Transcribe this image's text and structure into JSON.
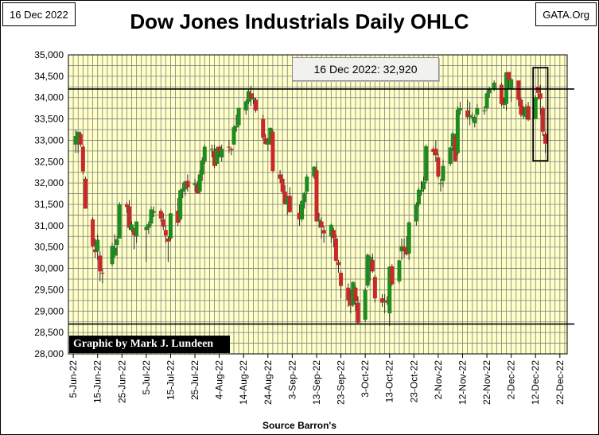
{
  "header": {
    "date_label": "16 Dec 2022",
    "brand_label": "GATA.Org"
  },
  "annotations": {
    "callout": "16 Dec 2022: 32,920",
    "credit": "Graphic by Mark J. Lundeen"
  },
  "colors": {
    "plot_bg": "#ffffc8",
    "grid": "#7f7f7f",
    "up": "#1e8b1e",
    "down": "#c82828",
    "reference_line": "#000000"
  },
  "chart_data": {
    "type": "ohlc",
    "title": "Dow Jones Industrials Daily OHLC",
    "xlabel": "Source Barron's",
    "ylabel": "",
    "ylim": [
      28000,
      35000
    ],
    "yticks": [
      28000,
      28500,
      29000,
      29500,
      30000,
      30500,
      31000,
      31500,
      32000,
      32500,
      33000,
      33500,
      34000,
      34500,
      35000
    ],
    "ytick_labels": [
      "28,000",
      "28,500",
      "29,000",
      "29,500",
      "30,000",
      "30,500",
      "31,000",
      "31,500",
      "32,000",
      "32,500",
      "33,000",
      "33,500",
      "34,000",
      "34,500",
      "35,000"
    ],
    "xlim": [
      "2022-06-03",
      "2022-12-25"
    ],
    "xticks": [
      "2022-06-05",
      "2022-06-15",
      "2022-06-25",
      "2022-07-05",
      "2022-07-15",
      "2022-07-25",
      "2022-08-04",
      "2022-08-14",
      "2022-08-24",
      "2022-09-03",
      "2022-09-13",
      "2022-09-23",
      "2022-10-03",
      "2022-10-13",
      "2022-10-23",
      "2022-11-02",
      "2022-11-12",
      "2022-11-22",
      "2022-12-02",
      "2022-12-12",
      "2022-12-22"
    ],
    "xtick_labels": [
      "5-Jun-22",
      "15-Jun-22",
      "25-Jun-22",
      "5-Jul-22",
      "15-Jul-22",
      "25-Jul-22",
      "4-Aug-22",
      "14-Aug-22",
      "24-Aug-22",
      "3-Sep-22",
      "13-Sep-22",
      "23-Sep-22",
      "3-Oct-22",
      "13-Oct-22",
      "23-Oct-22",
      "2-Nov-22",
      "12-Nov-22",
      "22-Nov-22",
      "2-Dec-22",
      "12-Dec-22",
      "22-Dec-22"
    ],
    "grid": true,
    "reference_lines": [
      34200,
      28700
    ],
    "highlight_box": {
      "x": [
        "2022-12-11",
        "2022-12-17"
      ],
      "y": [
        32520,
        34700
      ]
    },
    "bars": [
      {
        "d": "2022-06-06",
        "o": 32900,
        "h": 33250,
        "l": 32700,
        "c": 33100
      },
      {
        "d": "2022-06-07",
        "o": 32950,
        "h": 33200,
        "l": 32700,
        "c": 33200
      },
      {
        "d": "2022-06-08",
        "o": 33150,
        "h": 33200,
        "l": 32850,
        "c": 32900
      },
      {
        "d": "2022-06-09",
        "o": 32850,
        "h": 32900,
        "l": 32200,
        "c": 32270
      },
      {
        "d": "2022-06-10",
        "o": 32100,
        "h": 32150,
        "l": 31400,
        "c": 31400
      },
      {
        "d": "2022-06-13",
        "o": 31150,
        "h": 31200,
        "l": 30500,
        "c": 30520
      },
      {
        "d": "2022-06-14",
        "o": 30450,
        "h": 30700,
        "l": 30250,
        "c": 30380
      },
      {
        "d": "2022-06-15",
        "o": 30400,
        "h": 30800,
        "l": 30200,
        "c": 30670
      },
      {
        "d": "2022-06-16",
        "o": 30300,
        "h": 30400,
        "l": 29700,
        "c": 29930
      },
      {
        "d": "2022-06-17",
        "o": 29900,
        "h": 30000,
        "l": 29650,
        "c": 29890
      },
      {
        "d": "2022-06-21",
        "o": 30100,
        "h": 30600,
        "l": 30050,
        "c": 30530
      },
      {
        "d": "2022-06-22",
        "o": 30300,
        "h": 30800,
        "l": 30250,
        "c": 30480
      },
      {
        "d": "2022-06-23",
        "o": 30550,
        "h": 30750,
        "l": 30300,
        "c": 30680
      },
      {
        "d": "2022-06-24",
        "o": 30700,
        "h": 31550,
        "l": 30700,
        "c": 31500
      },
      {
        "d": "2022-06-27",
        "o": 31500,
        "h": 31550,
        "l": 31300,
        "c": 31440
      },
      {
        "d": "2022-06-28",
        "o": 31450,
        "h": 31600,
        "l": 30900,
        "c": 30950
      },
      {
        "d": "2022-06-29",
        "o": 30900,
        "h": 31100,
        "l": 30850,
        "c": 31030
      },
      {
        "d": "2022-06-30",
        "o": 30900,
        "h": 30950,
        "l": 30450,
        "c": 30780
      },
      {
        "d": "2022-07-01",
        "o": 30750,
        "h": 31100,
        "l": 30600,
        "c": 31100
      },
      {
        "d": "2022-07-05",
        "o": 30900,
        "h": 31000,
        "l": 30150,
        "c": 30970
      },
      {
        "d": "2022-07-06",
        "o": 30950,
        "h": 31100,
        "l": 30800,
        "c": 31040
      },
      {
        "d": "2022-07-07",
        "o": 31050,
        "h": 31450,
        "l": 31000,
        "c": 31380
      },
      {
        "d": "2022-07-08",
        "o": 31300,
        "h": 31450,
        "l": 31200,
        "c": 31340
      },
      {
        "d": "2022-07-11",
        "o": 31350,
        "h": 31400,
        "l": 31100,
        "c": 31170
      },
      {
        "d": "2022-07-12",
        "o": 31150,
        "h": 31300,
        "l": 30900,
        "c": 30980
      },
      {
        "d": "2022-07-13",
        "o": 30900,
        "h": 31000,
        "l": 30600,
        "c": 30770
      },
      {
        "d": "2022-07-14",
        "o": 30700,
        "h": 30750,
        "l": 30150,
        "c": 30630
      },
      {
        "d": "2022-07-15",
        "o": 30700,
        "h": 31300,
        "l": 30650,
        "c": 31290
      },
      {
        "d": "2022-07-18",
        "o": 31350,
        "h": 31650,
        "l": 31000,
        "c": 31070
      },
      {
        "d": "2022-07-19",
        "o": 31150,
        "h": 31850,
        "l": 31100,
        "c": 31830
      },
      {
        "d": "2022-07-20",
        "o": 31800,
        "h": 32000,
        "l": 31650,
        "c": 31870
      },
      {
        "d": "2022-07-21",
        "o": 31850,
        "h": 32050,
        "l": 31700,
        "c": 32040
      },
      {
        "d": "2022-07-22",
        "o": 32050,
        "h": 32200,
        "l": 31800,
        "c": 31900
      },
      {
        "d": "2022-07-25",
        "o": 31950,
        "h": 32100,
        "l": 31800,
        "c": 31990
      },
      {
        "d": "2022-07-26",
        "o": 31950,
        "h": 32050,
        "l": 31750,
        "c": 31760
      },
      {
        "d": "2022-07-27",
        "o": 31800,
        "h": 32300,
        "l": 31750,
        "c": 32200
      },
      {
        "d": "2022-07-28",
        "o": 32200,
        "h": 32600,
        "l": 32050,
        "c": 32530
      },
      {
        "d": "2022-07-29",
        "o": 32500,
        "h": 32900,
        "l": 32450,
        "c": 32850
      },
      {
        "d": "2022-08-01",
        "o": 32800,
        "h": 32900,
        "l": 32600,
        "c": 32800
      },
      {
        "d": "2022-08-02",
        "o": 32750,
        "h": 32900,
        "l": 32350,
        "c": 32400
      },
      {
        "d": "2022-08-03",
        "o": 32450,
        "h": 32850,
        "l": 32400,
        "c": 32810
      },
      {
        "d": "2022-08-04",
        "o": 32850,
        "h": 32880,
        "l": 32600,
        "c": 32730
      },
      {
        "d": "2022-08-05",
        "o": 32600,
        "h": 32900,
        "l": 32500,
        "c": 32800
      },
      {
        "d": "2022-08-08",
        "o": 32850,
        "h": 33000,
        "l": 32700,
        "c": 32830
      },
      {
        "d": "2022-08-09",
        "o": 32800,
        "h": 32830,
        "l": 32650,
        "c": 32770
      },
      {
        "d": "2022-08-10",
        "o": 32900,
        "h": 33350,
        "l": 32900,
        "c": 33310
      },
      {
        "d": "2022-08-11",
        "o": 33300,
        "h": 33600,
        "l": 33200,
        "c": 33340
      },
      {
        "d": "2022-08-12",
        "o": 33350,
        "h": 33750,
        "l": 33300,
        "c": 33760
      },
      {
        "d": "2022-08-15",
        "o": 33700,
        "h": 33950,
        "l": 33600,
        "c": 33910
      },
      {
        "d": "2022-08-16",
        "o": 33900,
        "h": 34200,
        "l": 33850,
        "c": 34150
      },
      {
        "d": "2022-08-17",
        "o": 34100,
        "h": 34280,
        "l": 33800,
        "c": 33980
      },
      {
        "d": "2022-08-18",
        "o": 33950,
        "h": 34100,
        "l": 33850,
        "c": 33990
      },
      {
        "d": "2022-08-19",
        "o": 33950,
        "h": 34000,
        "l": 33650,
        "c": 33700
      },
      {
        "d": "2022-08-22",
        "o": 33500,
        "h": 33600,
        "l": 33000,
        "c": 33060
      },
      {
        "d": "2022-08-23",
        "o": 33050,
        "h": 33150,
        "l": 32900,
        "c": 32910
      },
      {
        "d": "2022-08-24",
        "o": 32900,
        "h": 33050,
        "l": 32750,
        "c": 32970
      },
      {
        "d": "2022-08-25",
        "o": 32950,
        "h": 33300,
        "l": 32900,
        "c": 33290
      },
      {
        "d": "2022-08-26",
        "o": 33200,
        "h": 33250,
        "l": 32250,
        "c": 32280
      },
      {
        "d": "2022-08-29",
        "o": 32200,
        "h": 32300,
        "l": 32000,
        "c": 32100
      },
      {
        "d": "2022-08-30",
        "o": 32100,
        "h": 32200,
        "l": 31750,
        "c": 31790
      },
      {
        "d": "2022-08-31",
        "o": 31800,
        "h": 31950,
        "l": 31500,
        "c": 31510
      },
      {
        "d": "2022-09-01",
        "o": 31500,
        "h": 31700,
        "l": 31250,
        "c": 31650
      },
      {
        "d": "2022-09-02",
        "o": 31700,
        "h": 31900,
        "l": 31300,
        "c": 31320
      },
      {
        "d": "2022-09-06",
        "o": 31300,
        "h": 31500,
        "l": 31000,
        "c": 31150
      },
      {
        "d": "2022-09-07",
        "o": 31150,
        "h": 31600,
        "l": 31100,
        "c": 31580
      },
      {
        "d": "2022-09-08",
        "o": 31550,
        "h": 31800,
        "l": 31400,
        "c": 31770
      },
      {
        "d": "2022-09-09",
        "o": 31800,
        "h": 32200,
        "l": 31750,
        "c": 32150
      },
      {
        "d": "2022-09-12",
        "o": 32150,
        "h": 32400,
        "l": 32100,
        "c": 32380
      },
      {
        "d": "2022-09-13",
        "o": 32300,
        "h": 32500,
        "l": 31100,
        "c": 31100
      },
      {
        "d": "2022-09-14",
        "o": 31100,
        "h": 31300,
        "l": 30950,
        "c": 31140
      },
      {
        "d": "2022-09-15",
        "o": 31100,
        "h": 31200,
        "l": 30700,
        "c": 30960
      },
      {
        "d": "2022-09-16",
        "o": 30900,
        "h": 31000,
        "l": 30600,
        "c": 30820
      },
      {
        "d": "2022-09-19",
        "o": 30750,
        "h": 31050,
        "l": 30600,
        "c": 31020
      },
      {
        "d": "2022-09-20",
        "o": 30900,
        "h": 30950,
        "l": 30500,
        "c": 30710
      },
      {
        "d": "2022-09-21",
        "o": 30700,
        "h": 30800,
        "l": 30150,
        "c": 30180
      },
      {
        "d": "2022-09-22",
        "o": 30150,
        "h": 30200,
        "l": 29900,
        "c": 30080
      },
      {
        "d": "2022-09-23",
        "o": 29900,
        "h": 29950,
        "l": 29300,
        "c": 29590
      },
      {
        "d": "2022-09-26",
        "o": 29550,
        "h": 29650,
        "l": 29100,
        "c": 29260
      },
      {
        "d": "2022-09-27",
        "o": 29300,
        "h": 29500,
        "l": 28950,
        "c": 29130
      },
      {
        "d": "2022-09-28",
        "o": 29150,
        "h": 29700,
        "l": 29100,
        "c": 29680
      },
      {
        "d": "2022-09-29",
        "o": 29550,
        "h": 29600,
        "l": 29000,
        "c": 29230
      },
      {
        "d": "2022-09-30",
        "o": 29200,
        "h": 29350,
        "l": 28700,
        "c": 28730
      },
      {
        "d": "2022-10-03",
        "o": 28800,
        "h": 29550,
        "l": 28750,
        "c": 29490
      },
      {
        "d": "2022-10-04",
        "o": 29600,
        "h": 30350,
        "l": 29550,
        "c": 30320
      },
      {
        "d": "2022-10-05",
        "o": 30150,
        "h": 30300,
        "l": 29700,
        "c": 30270
      },
      {
        "d": "2022-10-06",
        "o": 30200,
        "h": 30350,
        "l": 29900,
        "c": 29930
      },
      {
        "d": "2022-10-07",
        "o": 29800,
        "h": 29850,
        "l": 29200,
        "c": 29300
      },
      {
        "d": "2022-10-10",
        "o": 29300,
        "h": 29400,
        "l": 29100,
        "c": 29200
      },
      {
        "d": "2022-10-11",
        "o": 29200,
        "h": 29400,
        "l": 28950,
        "c": 29240
      },
      {
        "d": "2022-10-12",
        "o": 29250,
        "h": 29350,
        "l": 29150,
        "c": 29210
      },
      {
        "d": "2022-10-13",
        "o": 28950,
        "h": 30050,
        "l": 28650,
        "c": 30040
      },
      {
        "d": "2022-10-14",
        "o": 30050,
        "h": 30100,
        "l": 29600,
        "c": 29630
      },
      {
        "d": "2022-10-17",
        "o": 29700,
        "h": 30200,
        "l": 29650,
        "c": 30190
      },
      {
        "d": "2022-10-18",
        "o": 30400,
        "h": 30700,
        "l": 30200,
        "c": 30520
      },
      {
        "d": "2022-10-19",
        "o": 30500,
        "h": 30700,
        "l": 30250,
        "c": 30420
      },
      {
        "d": "2022-10-20",
        "o": 30450,
        "h": 30750,
        "l": 30300,
        "c": 30330
      },
      {
        "d": "2022-10-21",
        "o": 30350,
        "h": 31100,
        "l": 30200,
        "c": 31080
      },
      {
        "d": "2022-10-24",
        "o": 31100,
        "h": 31550,
        "l": 31000,
        "c": 31500
      },
      {
        "d": "2022-10-25",
        "o": 31500,
        "h": 31900,
        "l": 31450,
        "c": 31840
      },
      {
        "d": "2022-10-26",
        "o": 31800,
        "h": 32050,
        "l": 31700,
        "c": 31840
      },
      {
        "d": "2022-10-27",
        "o": 31850,
        "h": 32150,
        "l": 31800,
        "c": 32030
      },
      {
        "d": "2022-10-28",
        "o": 32050,
        "h": 32900,
        "l": 32000,
        "c": 32860
      },
      {
        "d": "2022-10-31",
        "o": 32800,
        "h": 32850,
        "l": 32650,
        "c": 32730
      },
      {
        "d": "2022-11-01",
        "o": 32800,
        "h": 33000,
        "l": 32500,
        "c": 32650
      },
      {
        "d": "2022-11-02",
        "o": 32600,
        "h": 32700,
        "l": 32100,
        "c": 32150
      },
      {
        "d": "2022-11-03",
        "o": 32000,
        "h": 32100,
        "l": 31800,
        "c": 32000
      },
      {
        "d": "2022-11-04",
        "o": 32050,
        "h": 32550,
        "l": 31900,
        "c": 32400
      },
      {
        "d": "2022-11-07",
        "o": 32450,
        "h": 32850,
        "l": 32400,
        "c": 32830
      },
      {
        "d": "2022-11-08",
        "o": 32850,
        "h": 33200,
        "l": 32750,
        "c": 33160
      },
      {
        "d": "2022-11-09",
        "o": 33100,
        "h": 33150,
        "l": 32500,
        "c": 32510
      },
      {
        "d": "2022-11-10",
        "o": 32700,
        "h": 33800,
        "l": 32650,
        "c": 33720
      },
      {
        "d": "2022-11-11",
        "o": 33700,
        "h": 33900,
        "l": 33600,
        "c": 33750
      },
      {
        "d": "2022-11-14",
        "o": 33700,
        "h": 33950,
        "l": 33500,
        "c": 33540
      },
      {
        "d": "2022-11-15",
        "o": 33550,
        "h": 33900,
        "l": 33350,
        "c": 33590
      },
      {
        "d": "2022-11-16",
        "o": 33550,
        "h": 33650,
        "l": 33450,
        "c": 33550
      },
      {
        "d": "2022-11-17",
        "o": 33400,
        "h": 33600,
        "l": 33300,
        "c": 33550
      },
      {
        "d": "2022-11-18",
        "o": 33600,
        "h": 33850,
        "l": 33550,
        "c": 33750
      },
      {
        "d": "2022-11-21",
        "o": 33700,
        "h": 33800,
        "l": 33600,
        "c": 33700
      },
      {
        "d": "2022-11-22",
        "o": 33750,
        "h": 34150,
        "l": 33700,
        "c": 34100
      },
      {
        "d": "2022-11-23",
        "o": 34100,
        "h": 34250,
        "l": 34000,
        "c": 34190
      },
      {
        "d": "2022-11-25",
        "o": 34200,
        "h": 34400,
        "l": 34150,
        "c": 34350
      },
      {
        "d": "2022-11-28",
        "o": 34300,
        "h": 34350,
        "l": 33800,
        "c": 33850
      },
      {
        "d": "2022-11-29",
        "o": 33850,
        "h": 34000,
        "l": 33750,
        "c": 33850
      },
      {
        "d": "2022-11-30",
        "o": 33850,
        "h": 34600,
        "l": 33700,
        "c": 34590
      },
      {
        "d": "2022-12-01",
        "o": 34600,
        "h": 34600,
        "l": 34200,
        "c": 34400
      },
      {
        "d": "2022-12-02",
        "o": 34200,
        "h": 34450,
        "l": 33900,
        "c": 34430
      },
      {
        "d": "2022-12-05",
        "o": 34400,
        "h": 34400,
        "l": 33800,
        "c": 33950
      },
      {
        "d": "2022-12-06",
        "o": 33950,
        "h": 34000,
        "l": 33550,
        "c": 33600
      },
      {
        "d": "2022-12-07",
        "o": 33600,
        "h": 33800,
        "l": 33500,
        "c": 33600
      },
      {
        "d": "2022-12-08",
        "o": 33550,
        "h": 33850,
        "l": 33500,
        "c": 33780
      },
      {
        "d": "2022-12-09",
        "o": 33800,
        "h": 33900,
        "l": 33450,
        "c": 33480
      },
      {
        "d": "2022-12-12",
        "o": 33500,
        "h": 34050,
        "l": 33500,
        "c": 34010
      },
      {
        "d": "2022-12-13",
        "o": 34250,
        "h": 34700,
        "l": 33950,
        "c": 34110
      },
      {
        "d": "2022-12-14",
        "o": 34100,
        "h": 34300,
        "l": 33600,
        "c": 33970
      },
      {
        "d": "2022-12-15",
        "o": 33750,
        "h": 33800,
        "l": 33100,
        "c": 33200
      },
      {
        "d": "2022-12-16",
        "o": 33150,
        "h": 33200,
        "l": 32700,
        "c": 32920
      }
    ]
  }
}
